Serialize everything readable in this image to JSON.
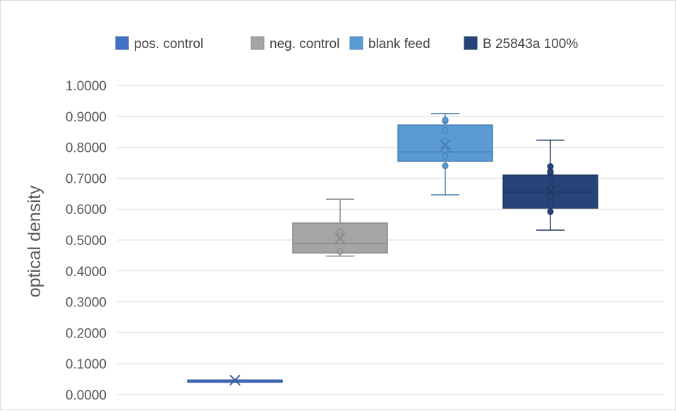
{
  "chart_data": {
    "type": "box",
    "title": "",
    "xlabel": "",
    "ylabel": "optical density",
    "ylim": [
      0,
      1
    ],
    "yticks": [
      "0.0000",
      "0.1000",
      "0.2000",
      "0.3000",
      "0.4000",
      "0.5000",
      "0.6000",
      "0.7000",
      "0.8000",
      "0.9000",
      "1.0000"
    ],
    "grid": true,
    "legend_position": "top",
    "series": [
      {
        "name": "pos. control",
        "color": "#4472C4",
        "min": 0.047,
        "q1": 0.047,
        "median": 0.047,
        "q3": 0.047,
        "max": 0.047,
        "mean": 0.047,
        "points": []
      },
      {
        "name": "neg. control",
        "color": "#A5A5A5",
        "min": 0.448,
        "q1": 0.458,
        "median": 0.488,
        "q3": 0.555,
        "max": 0.632,
        "mean": 0.505,
        "points": [
          0.463,
          0.517,
          0.527
        ]
      },
      {
        "name": "blank feed",
        "color": "#5B9BD5",
        "min": 0.646,
        "q1": 0.755,
        "median": 0.785,
        "q3": 0.872,
        "max": 0.909,
        "mean": 0.808,
        "points": [
          0.74,
          0.77,
          0.79,
          0.82,
          0.855,
          0.885,
          0.888
        ]
      },
      {
        "name": "B 25843a 100%",
        "color": "#264478",
        "min": 0.532,
        "q1": 0.603,
        "median": 0.655,
        "q3": 0.71,
        "max": 0.823,
        "mean": 0.658,
        "points": [
          0.592,
          0.622,
          0.64,
          0.668,
          0.69,
          0.717,
          0.722,
          0.738
        ]
      }
    ]
  }
}
